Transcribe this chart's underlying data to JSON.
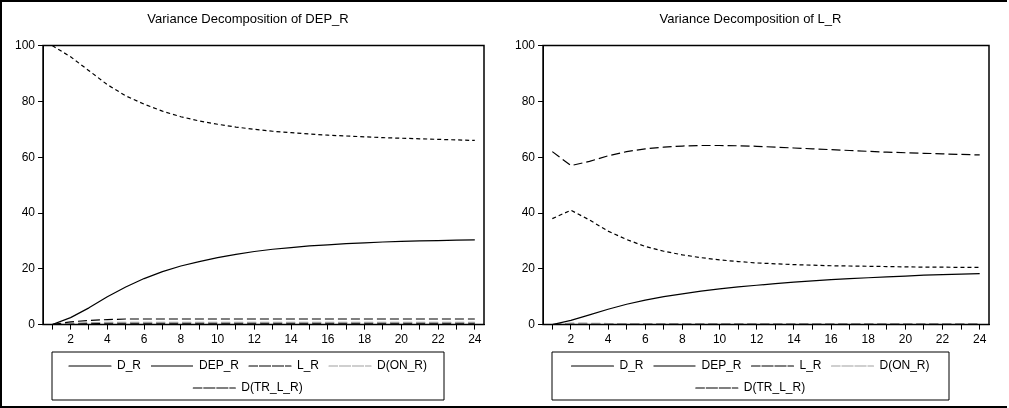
{
  "chart_data": [
    {
      "type": "line",
      "title": "Variance Decomposition of DEP_R",
      "x": [
        1,
        2,
        3,
        4,
        5,
        6,
        7,
        8,
        9,
        10,
        11,
        12,
        13,
        14,
        15,
        16,
        17,
        18,
        19,
        20,
        21,
        22,
        23,
        24
      ],
      "xlim": [
        0.5,
        24.5
      ],
      "xticks": [
        {
          "value": 1,
          "label": null
        },
        2,
        {
          "value": 3,
          "label": null
        },
        4,
        {
          "value": 5,
          "label": null
        },
        6,
        {
          "value": 7,
          "label": null
        },
        8,
        {
          "value": 9,
          "label": null
        },
        10,
        {
          "value": 11,
          "label": null
        },
        12,
        {
          "value": 13,
          "label": null
        },
        14,
        {
          "value": 15,
          "label": null
        },
        16,
        {
          "value": 17,
          "label": null
        },
        18,
        {
          "value": 19,
          "label": null
        },
        20,
        {
          "value": 21,
          "label": null
        },
        22,
        {
          "value": 23,
          "label": null
        },
        24
      ],
      "ylim": [
        0,
        100
      ],
      "yticks": [
        0,
        20,
        40,
        60,
        80,
        100
      ],
      "grid": false,
      "legend": "bottom",
      "marker": "none",
      "series": [
        {
          "name": "D_R",
          "color": "#000000",
          "line_style": "solid",
          "values": [
            0,
            2.5,
            6,
            10,
            13.5,
            16.5,
            19,
            21,
            22.6,
            24,
            25.2,
            26.2,
            27,
            27.6,
            28.2,
            28.6,
            29,
            29.3,
            29.6,
            29.8,
            30,
            30.1,
            30.3,
            30.4
          ]
        },
        {
          "name": "DEP_R",
          "color": "#000000",
          "line_style": "dotted",
          "values": [
            100,
            96,
            91,
            86,
            82,
            79,
            76.5,
            74.5,
            73,
            71.8,
            70.8,
            70,
            69.3,
            68.8,
            68.3,
            67.9,
            67.6,
            67.3,
            67,
            66.8,
            66.6,
            66.4,
            66.2,
            66
          ]
        },
        {
          "name": "L_R",
          "color": "#000000",
          "line_style": "dashed",
          "values": [
            0,
            1,
            1.5,
            1.8,
            2,
            2,
            2,
            2,
            2,
            2,
            2,
            2,
            2,
            2,
            2,
            2,
            2,
            2,
            2,
            2,
            2,
            2,
            2,
            2
          ]
        },
        {
          "name": "D(ON_R)",
          "color": "#a0a0a0",
          "line_style": "dashed",
          "values": [
            0,
            0.5,
            0.7,
            0.8,
            0.8,
            0.8,
            0.8,
            0.8,
            0.8,
            0.8,
            0.8,
            0.8,
            0.8,
            0.8,
            0.8,
            0.8,
            0.8,
            0.8,
            0.8,
            0.8,
            0.8,
            0.8,
            0.8,
            0.8
          ]
        },
        {
          "name": "D(TR_L_R)",
          "color": "#000000",
          "line_style": "dashed",
          "values": [
            0,
            0.3,
            0.4,
            0.5,
            0.5,
            0.5,
            0.5,
            0.5,
            0.5,
            0.5,
            0.5,
            0.5,
            0.5,
            0.5,
            0.5,
            0.5,
            0.5,
            0.5,
            0.5,
            0.5,
            0.5,
            0.5,
            0.5,
            0.5
          ]
        }
      ]
    },
    {
      "type": "line",
      "title": "Variance Decomposition of L_R",
      "x": [
        1,
        2,
        3,
        4,
        5,
        6,
        7,
        8,
        9,
        10,
        11,
        12,
        13,
        14,
        15,
        16,
        17,
        18,
        19,
        20,
        21,
        22,
        23,
        24
      ],
      "xlim": [
        0.5,
        24.5
      ],
      "xticks": [
        {
          "value": 1,
          "label": null
        },
        2,
        {
          "value": 3,
          "label": null
        },
        4,
        {
          "value": 5,
          "label": null
        },
        6,
        {
          "value": 7,
          "label": null
        },
        8,
        {
          "value": 9,
          "label": null
        },
        10,
        {
          "value": 11,
          "label": null
        },
        12,
        {
          "value": 13,
          "label": null
        },
        14,
        {
          "value": 15,
          "label": null
        },
        16,
        {
          "value": 17,
          "label": null
        },
        18,
        {
          "value": 19,
          "label": null
        },
        20,
        {
          "value": 21,
          "label": null
        },
        22,
        {
          "value": 23,
          "label": null
        },
        24
      ],
      "ylim": [
        0,
        100
      ],
      "yticks": [
        0,
        20,
        40,
        60,
        80,
        100
      ],
      "grid": false,
      "legend": "bottom",
      "marker": "none",
      "series": [
        {
          "name": "D_R",
          "color": "#000000",
          "line_style": "solid",
          "values": [
            0,
            1.5,
            3.5,
            5.5,
            7.3,
            8.8,
            10,
            11,
            12,
            12.8,
            13.5,
            14.1,
            14.7,
            15.2,
            15.7,
            16.1,
            16.5,
            16.8,
            17.1,
            17.4,
            17.7,
            17.9,
            18.1,
            18.3
          ]
        },
        {
          "name": "DEP_R",
          "color": "#000000",
          "line_style": "dotted",
          "values": [
            38,
            41,
            37.5,
            33.5,
            30.5,
            28,
            26.3,
            25,
            24,
            23.2,
            22.6,
            22.1,
            21.8,
            21.5,
            21.3,
            21.1,
            21,
            20.9,
            20.8,
            20.7,
            20.6,
            20.6,
            20.5,
            20.5
          ]
        },
        {
          "name": "L_R",
          "color": "#000000",
          "line_style": "dashed",
          "values": [
            62,
            57,
            58.5,
            60.5,
            62,
            63,
            63.6,
            64,
            64.2,
            64.2,
            64.1,
            63.9,
            63.6,
            63.3,
            63,
            62.7,
            62.4,
            62.1,
            61.8,
            61.6,
            61.4,
            61.2,
            61,
            60.8
          ]
        },
        {
          "name": "D(ON_R)",
          "color": "#a0a0a0",
          "line_style": "dashed",
          "values": [
            0,
            0.5,
            0.5,
            0.4,
            0.4,
            0.3,
            0.3,
            0.3,
            0.3,
            0.3,
            0.3,
            0.3,
            0.3,
            0.3,
            0.3,
            0.3,
            0.3,
            0.3,
            0.3,
            0.3,
            0.3,
            0.3,
            0.3,
            0.3
          ]
        },
        {
          "name": "D(TR_L_R)",
          "color": "#000000",
          "line_style": "dashed",
          "values": [
            0,
            0.2,
            0.2,
            0.2,
            0.2,
            0.2,
            0.2,
            0.2,
            0.2,
            0.2,
            0.2,
            0.2,
            0.2,
            0.2,
            0.2,
            0.2,
            0.2,
            0.2,
            0.2,
            0.2,
            0.2,
            0.2,
            0.2,
            0.2
          ]
        }
      ]
    }
  ]
}
